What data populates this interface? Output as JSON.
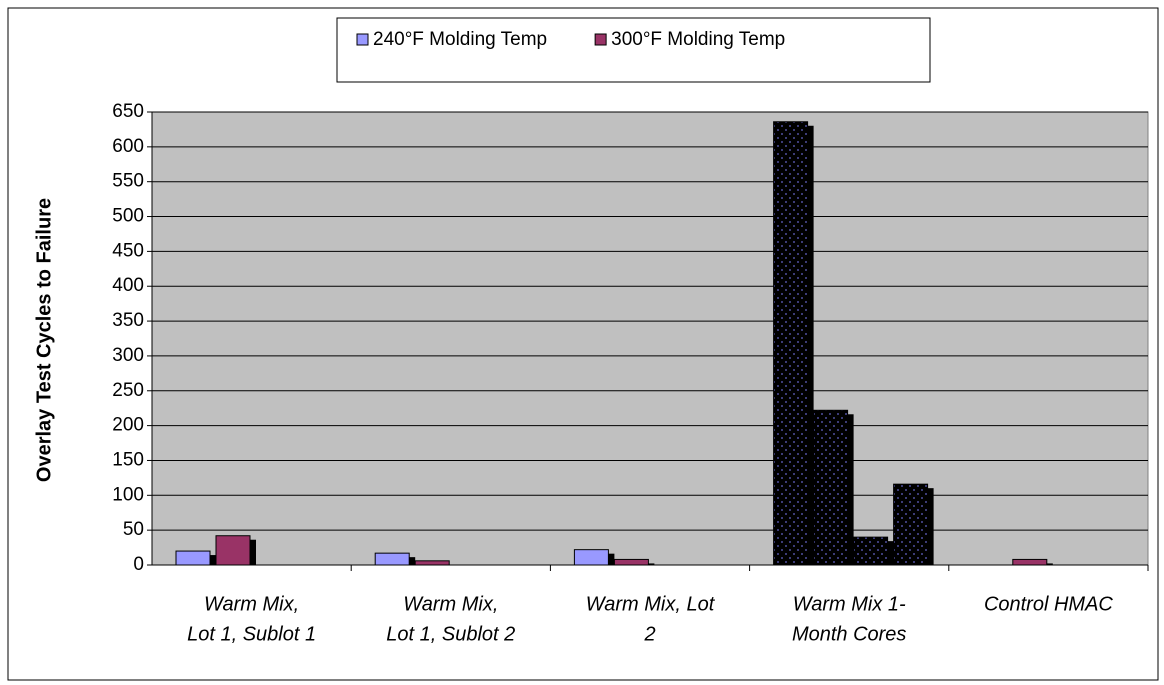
{
  "chart_data": {
    "type": "bar",
    "y_label": "Overlay Test Cycles to Failure",
    "categories": [
      [
        "Warm Mix,",
        "Lot 1, Sublot 1"
      ],
      [
        "Warm Mix,",
        "Lot 1, Sublot 2"
      ],
      [
        "Warm Mix, Lot",
        "2"
      ],
      [
        "Warm Mix 1-",
        "Month Cores"
      ],
      [
        "Control HMAC"
      ]
    ],
    "series": [
      {
        "name": "240°F Molding Temp",
        "color": "#9999ff",
        "values": [
          20,
          17,
          22,
          636,
          null
        ],
        "point_colors": [
          null,
          null,
          null,
          "#000000",
          null
        ]
      },
      {
        "name": "300°F Molding Temp",
        "color": "#993366",
        "values": [
          42,
          6,
          8,
          222,
          8
        ],
        "point_colors": [
          null,
          null,
          null,
          "#000000",
          null
        ]
      },
      {
        "color": "#000000",
        "values": [
          null,
          null,
          null,
          40,
          null
        ]
      },
      {
        "color": "#000000",
        "values": [
          null,
          null,
          null,
          116,
          null
        ]
      }
    ],
    "ylim": [
      0,
      650
    ],
    "yticks": [
      0,
      50,
      100,
      150,
      200,
      250,
      300,
      350,
      400,
      450,
      500,
      550,
      600,
      650
    ],
    "grid": true,
    "legend": "top"
  }
}
